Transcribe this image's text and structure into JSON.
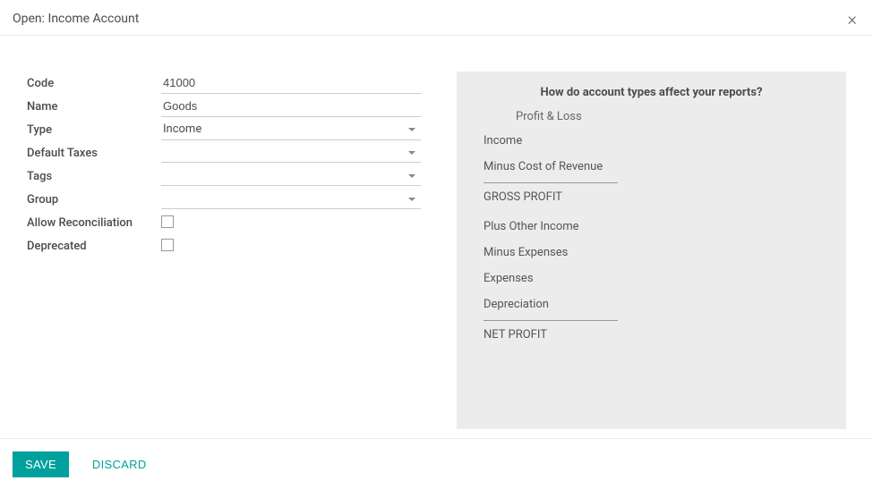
{
  "header": {
    "title": "Open: Income Account",
    "close_glyph": "×"
  },
  "form": {
    "code": {
      "label": "Code",
      "value": "41000"
    },
    "name": {
      "label": "Name",
      "value": "Goods"
    },
    "type": {
      "label": "Type",
      "value": "Income"
    },
    "default_taxes": {
      "label": "Default Taxes",
      "value": ""
    },
    "tags": {
      "label": "Tags",
      "value": ""
    },
    "group": {
      "label": "Group",
      "value": ""
    },
    "allow_reconciliation": {
      "label": "Allow Reconciliation",
      "checked": false
    },
    "deprecated": {
      "label": "Deprecated",
      "checked": false
    }
  },
  "info": {
    "title": "How do account types affect your reports?",
    "subtitle": "Profit & Loss",
    "items": [
      "Income",
      "Minus Cost of Revenue"
    ],
    "gross_profit": "GROSS PROFIT",
    "items2": [
      "Plus Other Income",
      "Minus Expenses",
      "Expenses",
      "Depreciation"
    ],
    "net_profit": "NET PROFIT"
  },
  "footer": {
    "save": "SAVE",
    "discard": "DISCARD"
  },
  "colors": {
    "primary": "#00a09d",
    "text": "#4c4c4c",
    "panel_bg": "#edecec",
    "border": "#ccc"
  }
}
